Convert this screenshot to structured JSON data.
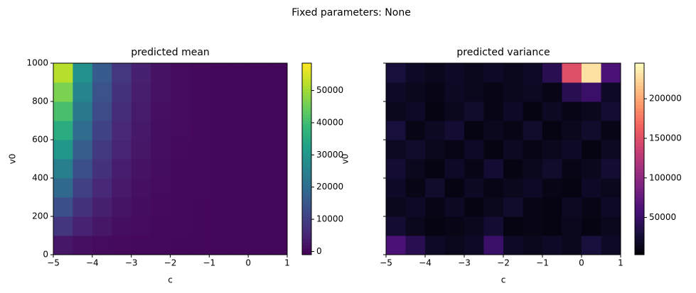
{
  "title": "Fixed parameters: None",
  "chart_data": [
    {
      "type": "heatmap",
      "title": "predicted mean",
      "x_label": "c",
      "y_label": "v0",
      "xlim": [
        -5,
        1
      ],
      "ylim": [
        0,
        1000
      ],
      "xticks": [
        {
          "value": -5,
          "label": "−5"
        },
        {
          "value": -4,
          "label": "−4"
        },
        {
          "value": -3,
          "label": "−3"
        },
        {
          "value": -2,
          "label": "−2"
        },
        {
          "value": -1,
          "label": "−1"
        },
        0,
        1
      ],
      "yticks": [
        0,
        200,
        400,
        600,
        800,
        1000
      ],
      "ytick_labels": true,
      "colormap": "viridis",
      "clim": [
        -1000,
        58500
      ],
      "cticks": [
        0,
        10000,
        20000,
        30000,
        40000,
        50000
      ],
      "z": [
        [
          2700,
          1500,
          840,
          450,
          230,
          110,
          50,
          20,
          0,
          0,
          0,
          0
        ],
        [
          8200,
          4600,
          2500,
          1300,
          680,
          320,
          140,
          60,
          20,
          0,
          0,
          0
        ],
        [
          13700,
          7600,
          4200,
          2200,
          1100,
          530,
          240,
          90,
          30,
          0,
          0,
          0
        ],
        [
          19100,
          10700,
          5900,
          3100,
          1600,
          740,
          330,
          130,
          40,
          0,
          0,
          0
        ],
        [
          24600,
          13700,
          7600,
          4000,
          2000,
          950,
          430,
          170,
          50,
          0,
          0,
          0
        ],
        [
          30100,
          16800,
          9300,
          4900,
          2500,
          1200,
          520,
          200,
          60,
          0,
          0,
          0
        ],
        [
          35600,
          19800,
          10900,
          5800,
          2900,
          1400,
          620,
          240,
          70,
          0,
          0,
          0
        ],
        [
          41000,
          22900,
          12600,
          6700,
          3400,
          1600,
          710,
          280,
          80,
          0,
          0,
          0
        ],
        [
          46500,
          26000,
          14300,
          7600,
          3800,
          1800,
          800,
          310,
          90,
          0,
          0,
          0
        ],
        [
          52000,
          29000,
          16000,
          8500,
          4300,
          2000,
          900,
          350,
          100,
          0,
          0,
          0
        ]
      ]
    },
    {
      "type": "heatmap",
      "title": "predicted variance",
      "x_label": "c",
      "y_label": "v0",
      "xlim": [
        -5,
        1
      ],
      "ylim": [
        0,
        1000
      ],
      "xticks": [
        {
          "value": -5,
          "label": "−5"
        },
        {
          "value": -4,
          "label": "−4"
        },
        {
          "value": -3,
          "label": "−3"
        },
        {
          "value": -2,
          "label": "−2"
        },
        {
          "value": -1,
          "label": "−1"
        },
        0,
        1
      ],
      "yticks": [
        0,
        200,
        400,
        600,
        800,
        1000
      ],
      "ytick_labels": false,
      "colormap": "magma",
      "clim": [
        3000,
        245000
      ],
      "cticks": [
        50000,
        100000,
        150000,
        200000
      ],
      "z": [
        [
          60000,
          40000,
          20000,
          15000,
          20000,
          50000,
          20000,
          15000,
          20000,
          15000,
          30000,
          20000
        ],
        [
          25000,
          15000,
          10000,
          12000,
          15000,
          25000,
          10000,
          12000,
          10000,
          15000,
          10000,
          15000
        ],
        [
          15000,
          20000,
          12000,
          18000,
          10000,
          15000,
          22000,
          12000,
          10000,
          18000,
          12000,
          20000
        ],
        [
          20000,
          12000,
          22000,
          10000,
          18000,
          12000,
          15000,
          20000,
          12000,
          10000,
          20000,
          15000
        ],
        [
          25000,
          15000,
          10000,
          20000,
          12000,
          25000,
          10000,
          15000,
          22000,
          12000,
          15000,
          25000
        ],
        [
          18000,
          22000,
          15000,
          12000,
          20000,
          10000,
          18000,
          12000,
          15000,
          20000,
          10000,
          18000
        ],
        [
          30000,
          12000,
          18000,
          25000,
          10000,
          15000,
          12000,
          22000,
          10000,
          15000,
          22000,
          12000
        ],
        [
          15000,
          20000,
          10000,
          15000,
          22000,
          12000,
          20000,
          10000,
          18000,
          12000,
          15000,
          25000
        ],
        [
          20000,
          15000,
          12000,
          18000,
          15000,
          12000,
          15000,
          18000,
          12000,
          40000,
          50000,
          20000
        ],
        [
          30000,
          20000,
          15000,
          20000,
          15000,
          20000,
          15000,
          20000,
          40000,
          150000,
          230000,
          60000
        ]
      ]
    }
  ]
}
